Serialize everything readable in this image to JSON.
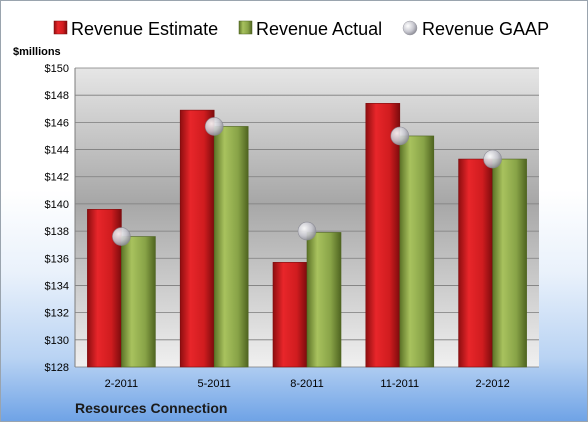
{
  "chart_data": {
    "type": "bar",
    "unit_label": "$millions",
    "company": "Resources Connection",
    "categories": [
      "2-2011",
      "5-2011",
      "8-2011",
      "11-2011",
      "2-2012"
    ],
    "series": [
      {
        "name": "Revenue Estimate",
        "values": [
          139.6,
          146.9,
          135.7,
          147.4,
          143.3
        ],
        "color": "#d01c1f",
        "kind": "bar"
      },
      {
        "name": "Revenue Actual",
        "values": [
          137.6,
          145.7,
          137.9,
          145.0,
          143.3
        ],
        "color": "#88a347",
        "kind": "bar"
      },
      {
        "name": "Revenue GAAP",
        "values": [
          137.6,
          145.7,
          138.0,
          145.0,
          143.3
        ],
        "color": "#c0c0c8",
        "kind": "marker"
      }
    ],
    "ylim": [
      128,
      150
    ],
    "yticks": [
      128,
      130,
      132,
      134,
      136,
      138,
      140,
      142,
      144,
      146,
      148,
      150
    ],
    "grid": true,
    "legend_position": "top"
  }
}
